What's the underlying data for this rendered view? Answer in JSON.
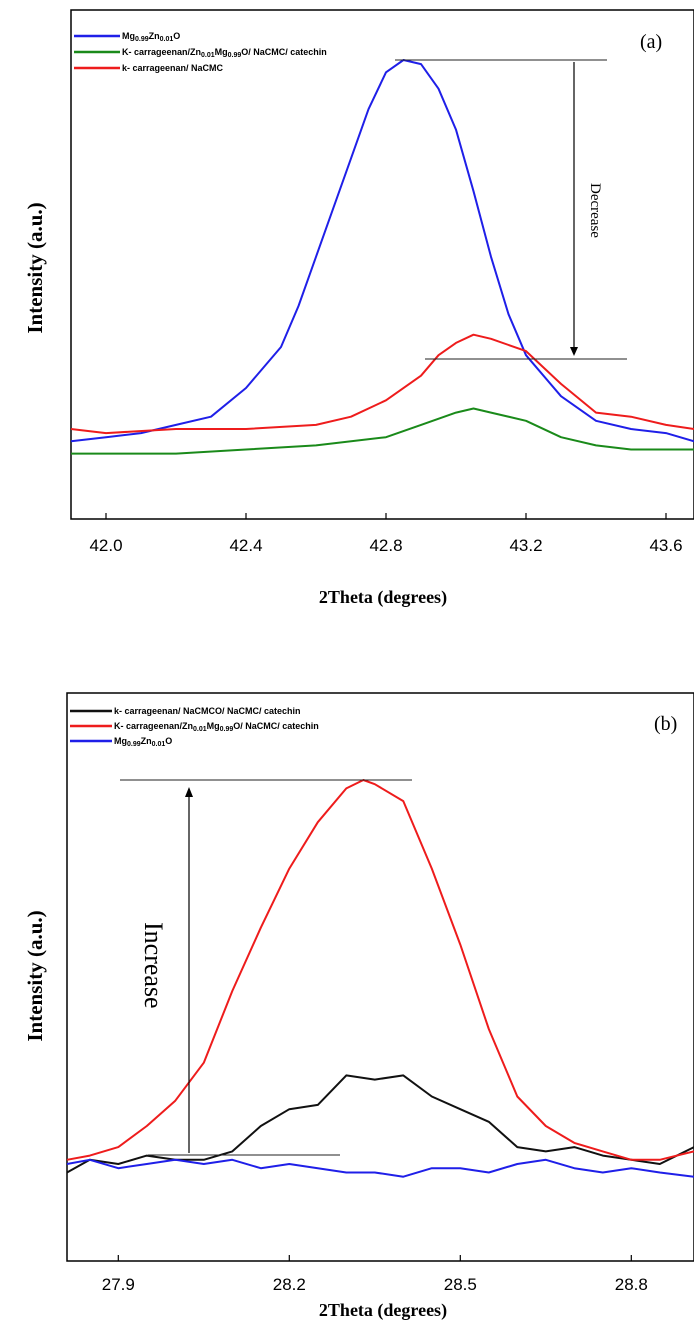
{
  "chart_data": [
    {
      "type": "line",
      "panel_label": "(a)",
      "xlabel": "2Theta (degrees)",
      "ylabel": "Intensity (a.u.)",
      "xlim": [
        41.9,
        43.68
      ],
      "ylim": [
        0,
        1
      ],
      "xticks": [
        42.0,
        42.4,
        42.8,
        43.2,
        43.6
      ],
      "xtick_labels": [
        "42.0",
        "42.4",
        "42.8",
        "43.2",
        "43.6"
      ],
      "legend_position": "top-left",
      "annotation": "Decrease",
      "series": [
        {
          "name": "Mg0.99Zn0.01O",
          "legend_parts": [
            [
              "Mg",
              ""
            ],
            [
              "0.99",
              "sub"
            ],
            [
              "Zn",
              ""
            ],
            [
              "0.01",
              "sub"
            ],
            [
              "O",
              ""
            ]
          ],
          "color": "#1f1fe8",
          "x": [
            41.9,
            42.0,
            42.1,
            42.2,
            42.3,
            42.4,
            42.5,
            42.55,
            42.6,
            42.65,
            42.7,
            42.75,
            42.8,
            42.85,
            42.9,
            42.95,
            43.0,
            43.05,
            43.1,
            43.15,
            43.2,
            43.3,
            43.4,
            43.5,
            43.6,
            43.68
          ],
          "y": [
            0.07,
            0.08,
            0.09,
            0.11,
            0.13,
            0.2,
            0.3,
            0.4,
            0.52,
            0.64,
            0.76,
            0.88,
            0.97,
            1.0,
            0.99,
            0.93,
            0.83,
            0.68,
            0.52,
            0.38,
            0.28,
            0.18,
            0.12,
            0.1,
            0.09,
            0.07
          ]
        },
        {
          "name": "K- carrageenan/Zn0.01Mg0.99O/ NaCMC/ catechin",
          "legend_parts": [
            [
              "K- carrageenan/Zn",
              ""
            ],
            [
              "0.01",
              "sub"
            ],
            [
              "Mg",
              ""
            ],
            [
              "0.99",
              "sub"
            ],
            [
              "O/ NaCMC/ catechin",
              ""
            ]
          ],
          "color": "#1a8a1a",
          "x": [
            41.9,
            42.0,
            42.2,
            42.4,
            42.6,
            42.8,
            42.9,
            43.0,
            43.05,
            43.1,
            43.2,
            43.3,
            43.4,
            43.5,
            43.6,
            43.68
          ],
          "y": [
            0.04,
            0.04,
            0.04,
            0.05,
            0.06,
            0.08,
            0.11,
            0.14,
            0.15,
            0.14,
            0.12,
            0.08,
            0.06,
            0.05,
            0.05,
            0.05
          ]
        },
        {
          "name": "k- carrageenan/ NaCMC",
          "legend_parts": [
            [
              "k- carrageenan/ NaCMC",
              ""
            ]
          ],
          "color": "#ee1c1c",
          "x": [
            41.9,
            42.0,
            42.2,
            42.4,
            42.6,
            42.7,
            42.8,
            42.9,
            42.95,
            43.0,
            43.05,
            43.1,
            43.2,
            43.3,
            43.4,
            43.5,
            43.6,
            43.68
          ],
          "y": [
            0.1,
            0.09,
            0.1,
            0.1,
            0.11,
            0.13,
            0.17,
            0.23,
            0.28,
            0.31,
            0.33,
            0.32,
            0.29,
            0.21,
            0.14,
            0.13,
            0.11,
            0.1
          ]
        }
      ]
    },
    {
      "type": "line",
      "panel_label": "(b)",
      "xlabel": "2Theta (degrees)",
      "ylabel": "Intensity (a.u.)",
      "xlim": [
        27.81,
        28.91
      ],
      "ylim": [
        0,
        1
      ],
      "xticks": [
        27.9,
        28.2,
        28.5,
        28.8
      ],
      "xtick_labels": [
        "27.9",
        "28.2",
        "28.5",
        "28.8"
      ],
      "legend_position": "top-left",
      "annotation": "Increase",
      "series": [
        {
          "name": "k- carrageenan/ NaCMCO/ NaCMC/ catechin",
          "legend_parts": [
            [
              "k- carrageenan/ NaCMCO/ NaCMC/ catechin",
              ""
            ]
          ],
          "color": "#111111",
          "x": [
            27.81,
            27.85,
            27.9,
            27.95,
            28.0,
            28.05,
            28.1,
            28.15,
            28.2,
            28.25,
            28.3,
            28.35,
            28.4,
            28.45,
            28.5,
            28.55,
            28.6,
            28.65,
            28.7,
            28.75,
            28.8,
            28.85,
            28.91
          ],
          "y": [
            0.07,
            0.1,
            0.09,
            0.11,
            0.1,
            0.1,
            0.12,
            0.18,
            0.22,
            0.23,
            0.3,
            0.29,
            0.3,
            0.25,
            0.22,
            0.19,
            0.13,
            0.12,
            0.13,
            0.11,
            0.1,
            0.09,
            0.13
          ]
        },
        {
          "name": "K- carrageenan/Zn0.01Mg0.99O/ NaCMC/ catechin",
          "legend_parts": [
            [
              "K- carrageenan/Zn",
              ""
            ],
            [
              "0.01",
              "sub"
            ],
            [
              "Mg",
              ""
            ],
            [
              "0.99",
              "sub"
            ],
            [
              "O/ NaCMC/ catechin",
              ""
            ]
          ],
          "color": "#ee1c1c",
          "x": [
            27.81,
            27.85,
            27.9,
            27.95,
            28.0,
            28.05,
            28.1,
            28.15,
            28.2,
            28.25,
            28.3,
            28.33,
            28.35,
            28.4,
            28.45,
            28.5,
            28.55,
            28.6,
            28.65,
            28.7,
            28.75,
            28.8,
            28.85,
            28.91
          ],
          "y": [
            0.1,
            0.11,
            0.13,
            0.18,
            0.24,
            0.33,
            0.5,
            0.65,
            0.79,
            0.9,
            0.98,
            1.0,
            0.99,
            0.95,
            0.79,
            0.61,
            0.41,
            0.25,
            0.18,
            0.14,
            0.12,
            0.1,
            0.1,
            0.12
          ]
        },
        {
          "name": "Mg0.99Zn0.01O",
          "legend_parts": [
            [
              "Mg",
              ""
            ],
            [
              "0.99",
              "sub"
            ],
            [
              "Zn",
              ""
            ],
            [
              "0.01",
              "sub"
            ],
            [
              "O",
              ""
            ]
          ],
          "color": "#1f1fe8",
          "x": [
            27.81,
            27.85,
            27.9,
            27.95,
            28.0,
            28.05,
            28.1,
            28.15,
            28.2,
            28.25,
            28.3,
            28.35,
            28.4,
            28.45,
            28.5,
            28.55,
            28.6,
            28.65,
            28.7,
            28.75,
            28.8,
            28.85,
            28.91
          ],
          "y": [
            0.09,
            0.1,
            0.08,
            0.09,
            0.1,
            0.09,
            0.1,
            0.08,
            0.09,
            0.08,
            0.07,
            0.07,
            0.06,
            0.08,
            0.08,
            0.07,
            0.09,
            0.1,
            0.08,
            0.07,
            0.08,
            0.07,
            0.06
          ]
        }
      ]
    }
  ]
}
